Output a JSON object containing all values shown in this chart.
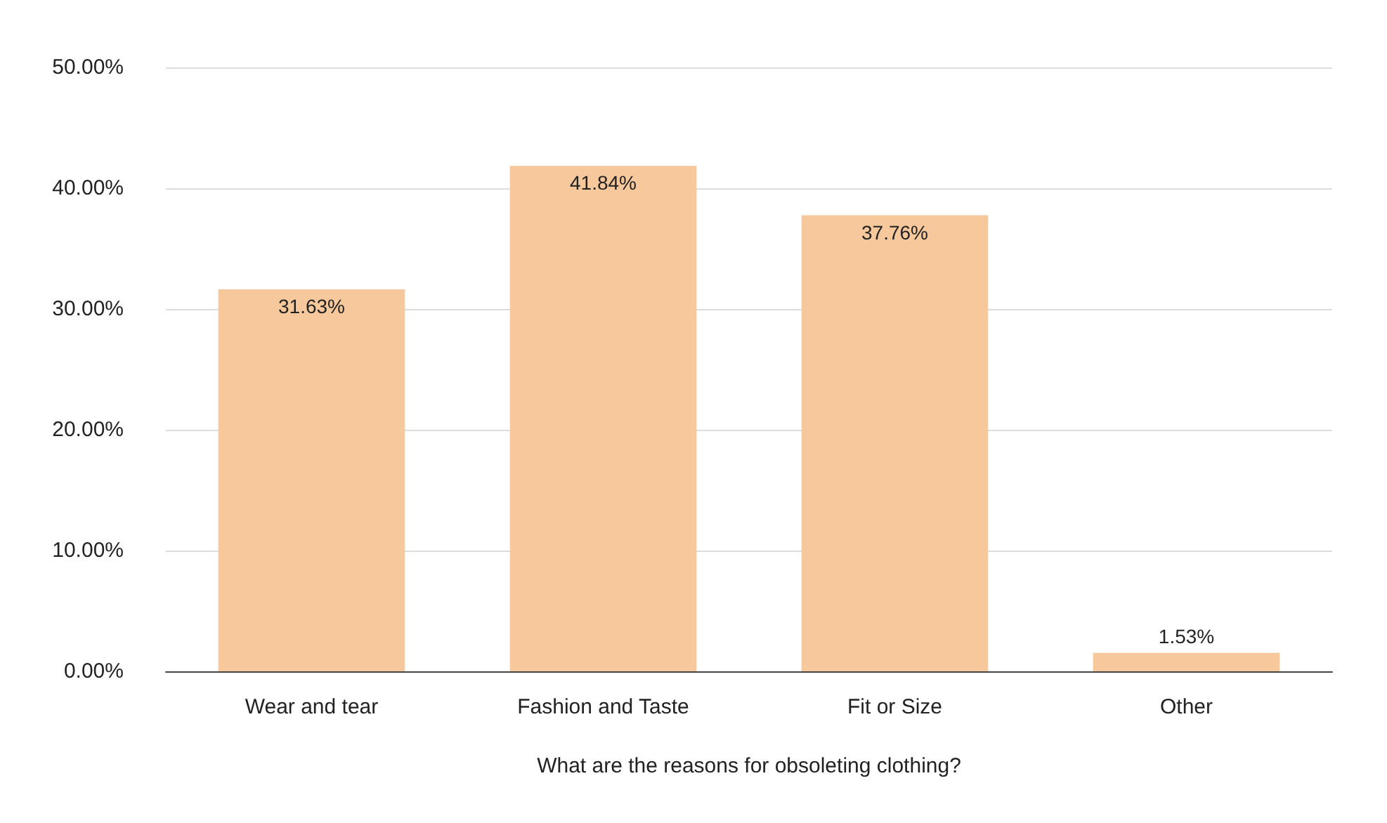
{
  "chart_data": {
    "type": "bar",
    "xlabel": "What are the reasons for obsoleting clothing?",
    "categories": [
      "Wear and tear",
      "Fashion and Taste",
      "Fit or Size",
      "Other"
    ],
    "values": [
      31.63,
      41.84,
      37.76,
      1.53
    ],
    "value_labels": [
      "31.63%",
      "41.84%",
      "37.76%",
      "1.53%"
    ],
    "color": "#f7c89b",
    "ylim": [
      0,
      50
    ],
    "yticks": [
      {
        "value": 0,
        "label": "0.00%"
      },
      {
        "value": 10,
        "label": "10.00%"
      },
      {
        "value": 20,
        "label": "20.00%"
      },
      {
        "value": 30,
        "label": "30.00%"
      },
      {
        "value": 40,
        "label": "40.00%"
      },
      {
        "value": 50,
        "label": "50.00%"
      }
    ],
    "grid": "y"
  }
}
